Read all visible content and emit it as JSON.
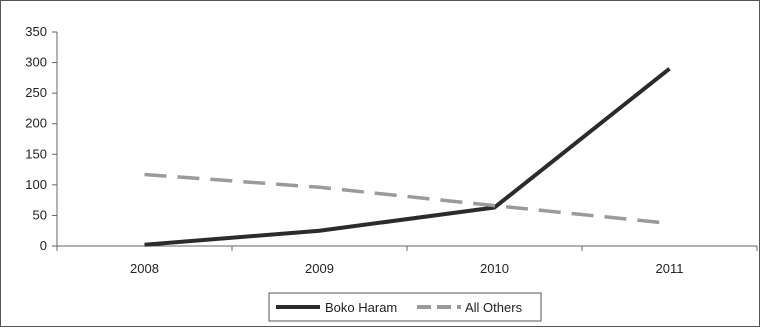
{
  "chart_data": {
    "type": "line",
    "title": "",
    "xlabel": "",
    "ylabel": "",
    "categories": [
      "2008",
      "2009",
      "2010",
      "2011"
    ],
    "ylim": [
      0,
      350
    ],
    "yticks": [
      0,
      50,
      100,
      150,
      200,
      250,
      300,
      350
    ],
    "grid": false,
    "legend_position": "bottom",
    "series": [
      {
        "name": "Boko Haram",
        "values": [
          2,
          25,
          63,
          290
        ],
        "color": "#2b2b2b",
        "style": "solid"
      },
      {
        "name": "All Others",
        "values": [
          117,
          96,
          66,
          37
        ],
        "color": "#9a9a9a",
        "style": "dashed"
      }
    ]
  }
}
